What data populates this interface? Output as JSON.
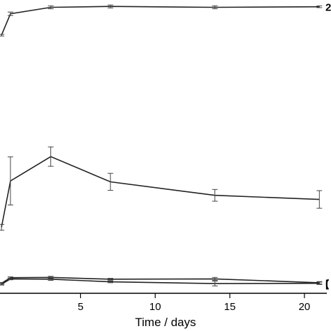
{
  "chart_data": {
    "type": "line",
    "xlabel": "Time / days",
    "ylabel": "",
    "title": "",
    "xlim": [
      -0.4,
      21.5
    ],
    "ylim": [
      0,
      1
    ],
    "xticks": [
      5,
      10,
      15,
      20
    ],
    "grid": false,
    "series": [
      {
        "end_label": "2",
        "x": [
          -0.3,
          0.3,
          3,
          7,
          14,
          21
        ],
        "y": [
          0.88,
          0.953,
          0.975,
          0.978,
          0.975,
          0.977
        ],
        "err": [
          0.003,
          0.006,
          0.005,
          0.005,
          0.005,
          0.003
        ]
      },
      {
        "end_label": "",
        "x": [
          -0.3,
          0.3,
          3,
          7,
          14,
          21
        ],
        "y": [
          0.225,
          0.383,
          0.466,
          0.38,
          0.334,
          0.32
        ],
        "err": [
          0.01,
          0.082,
          0.033,
          0.029,
          0.02,
          0.03
        ]
      },
      {
        "end_label": "(",
        "x": [
          -0.3,
          0.3,
          3,
          7,
          14,
          21
        ],
        "y": [
          0.034,
          0.053,
          0.054,
          0.048,
          0.049,
          0.036
        ],
        "err": [
          0.003,
          0.003,
          0.004,
          0.003,
          0.005,
          0.004
        ]
      },
      {
        "end_label": "[",
        "x": [
          -0.3,
          0.3,
          3,
          7,
          14,
          21
        ],
        "y": [
          0.031,
          0.049,
          0.048,
          0.039,
          0.033,
          0.034
        ],
        "err": [
          0.003,
          0.003,
          0.004,
          0.003,
          0.008,
          0.004
        ]
      }
    ]
  }
}
